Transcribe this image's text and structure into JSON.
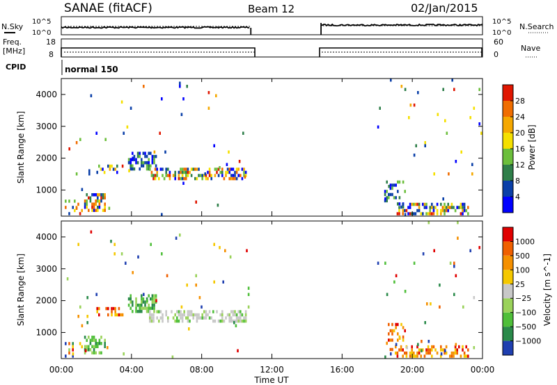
{
  "header": {
    "radar": "SANAE (fitACF)",
    "beam": "Beam 12",
    "date": "02/Jan/2015"
  },
  "top_panels": {
    "nsky_label": "N.Sky",
    "nsearch_label": "N.Search",
    "count_ticks": [
      "10^5",
      "10^0"
    ],
    "freq_label_1": "Freq.",
    "freq_label_2": "[MHz]",
    "freq_ticks": [
      "18",
      "8"
    ],
    "nave_label": "Nave",
    "nave_ticks": [
      "60",
      "0"
    ],
    "cpid_label": "CPID",
    "cpid_value": "normal 150"
  },
  "xaxis": {
    "label": "Time UT",
    "ticks": [
      "00:00",
      "04:00",
      "08:00",
      "12:00",
      "16:00",
      "20:00",
      "00:00"
    ]
  },
  "chart_data": [
    {
      "type": "heatmap",
      "name": "power",
      "ylabel": "Slant Range [km]",
      "yticks": [
        "1000",
        "2000",
        "3000",
        "4000"
      ],
      "xrange_hours": [
        0,
        24
      ],
      "yrange_km": [
        180,
        4500
      ],
      "colorbar": {
        "label": "Power [dB]",
        "ticks": [
          "4",
          "8",
          "12",
          "16",
          "20",
          "24",
          "28"
        ],
        "colors": [
          "#0000ff",
          "#0a3fa8",
          "#2f7f4a",
          "#6cbf3c",
          "#f5e000",
          "#f5a800",
          "#f06d00",
          "#e01600"
        ]
      },
      "regions": [
        {
          "t": [
            0.2,
            1.3
          ],
          "r": [
            180,
            700
          ],
          "level": "mixed",
          "density": 0.2
        },
        {
          "t": [
            1.3,
            2.5
          ],
          "r": [
            300,
            900
          ],
          "level": "mixed",
          "density": 0.55
        },
        {
          "t": [
            2.0,
            3.5
          ],
          "r": [
            1550,
            1800
          ],
          "level": "mixed",
          "density": 0.45
        },
        {
          "t": [
            3.8,
            5.5
          ],
          "r": [
            1600,
            2200
          ],
          "level": "low",
          "density": 0.6
        },
        {
          "t": [
            5.0,
            10.6
          ],
          "r": [
            1350,
            1700
          ],
          "level": "mixed",
          "density": 0.55
        },
        {
          "t": [
            18.4,
            19.6
          ],
          "r": [
            400,
            1300
          ],
          "level": "low",
          "density": 0.3
        },
        {
          "t": [
            19.0,
            23.2
          ],
          "r": [
            200,
            600
          ],
          "level": "mixed",
          "density": 0.4
        },
        {
          "t": [
            0,
            10.7
          ],
          "r": [
            180,
            4500
          ],
          "level": "mixed",
          "density": 0.012
        },
        {
          "t": [
            18.0,
            24.0
          ],
          "r": [
            180,
            4500
          ],
          "level": "mixed",
          "density": 0.012
        }
      ]
    },
    {
      "type": "heatmap",
      "name": "velocity",
      "ylabel": "Slant Range [km]",
      "yticks": [
        "1000",
        "2000",
        "3000",
        "4000"
      ],
      "xrange_hours": [
        0,
        24
      ],
      "yrange_km": [
        180,
        4500
      ],
      "colorbar": {
        "label": "Velocity [m s^-1]",
        "ticks": [
          "1000",
          "500",
          "100",
          "25",
          "−25",
          "−100",
          "−500",
          "−1000"
        ],
        "colors": [
          "#1f3fb0",
          "#2a8a4a",
          "#4fbf3a",
          "#9ad25a",
          "#c8c8c8",
          "#f5c800",
          "#f59000",
          "#f06000",
          "#e00000"
        ]
      },
      "regions": [
        {
          "t": [
            0.2,
            1.3
          ],
          "r": [
            180,
            700
          ],
          "level": "mixed",
          "density": 0.2
        },
        {
          "t": [
            1.3,
            2.5
          ],
          "r": [
            300,
            900
          ],
          "level": "green",
          "density": 0.55
        },
        {
          "t": [
            2.0,
            3.5
          ],
          "r": [
            1550,
            1800
          ],
          "level": "warm",
          "density": 0.45
        },
        {
          "t": [
            3.8,
            5.5
          ],
          "r": [
            1600,
            2200
          ],
          "level": "green",
          "density": 0.6
        },
        {
          "t": [
            5.0,
            10.6
          ],
          "r": [
            1300,
            1700
          ],
          "level": "grey",
          "density": 0.55
        },
        {
          "t": [
            18.4,
            19.6
          ],
          "r": [
            400,
            1300
          ],
          "level": "warm",
          "density": 0.3
        },
        {
          "t": [
            19.0,
            23.2
          ],
          "r": [
            200,
            600
          ],
          "level": "warm",
          "density": 0.4
        },
        {
          "t": [
            0,
            10.7
          ],
          "r": [
            180,
            4500
          ],
          "level": "mixed",
          "density": 0.012
        },
        {
          "t": [
            18.0,
            24.0
          ],
          "r": [
            180,
            4500
          ],
          "level": "mixed",
          "density": 0.012
        }
      ]
    }
  ]
}
